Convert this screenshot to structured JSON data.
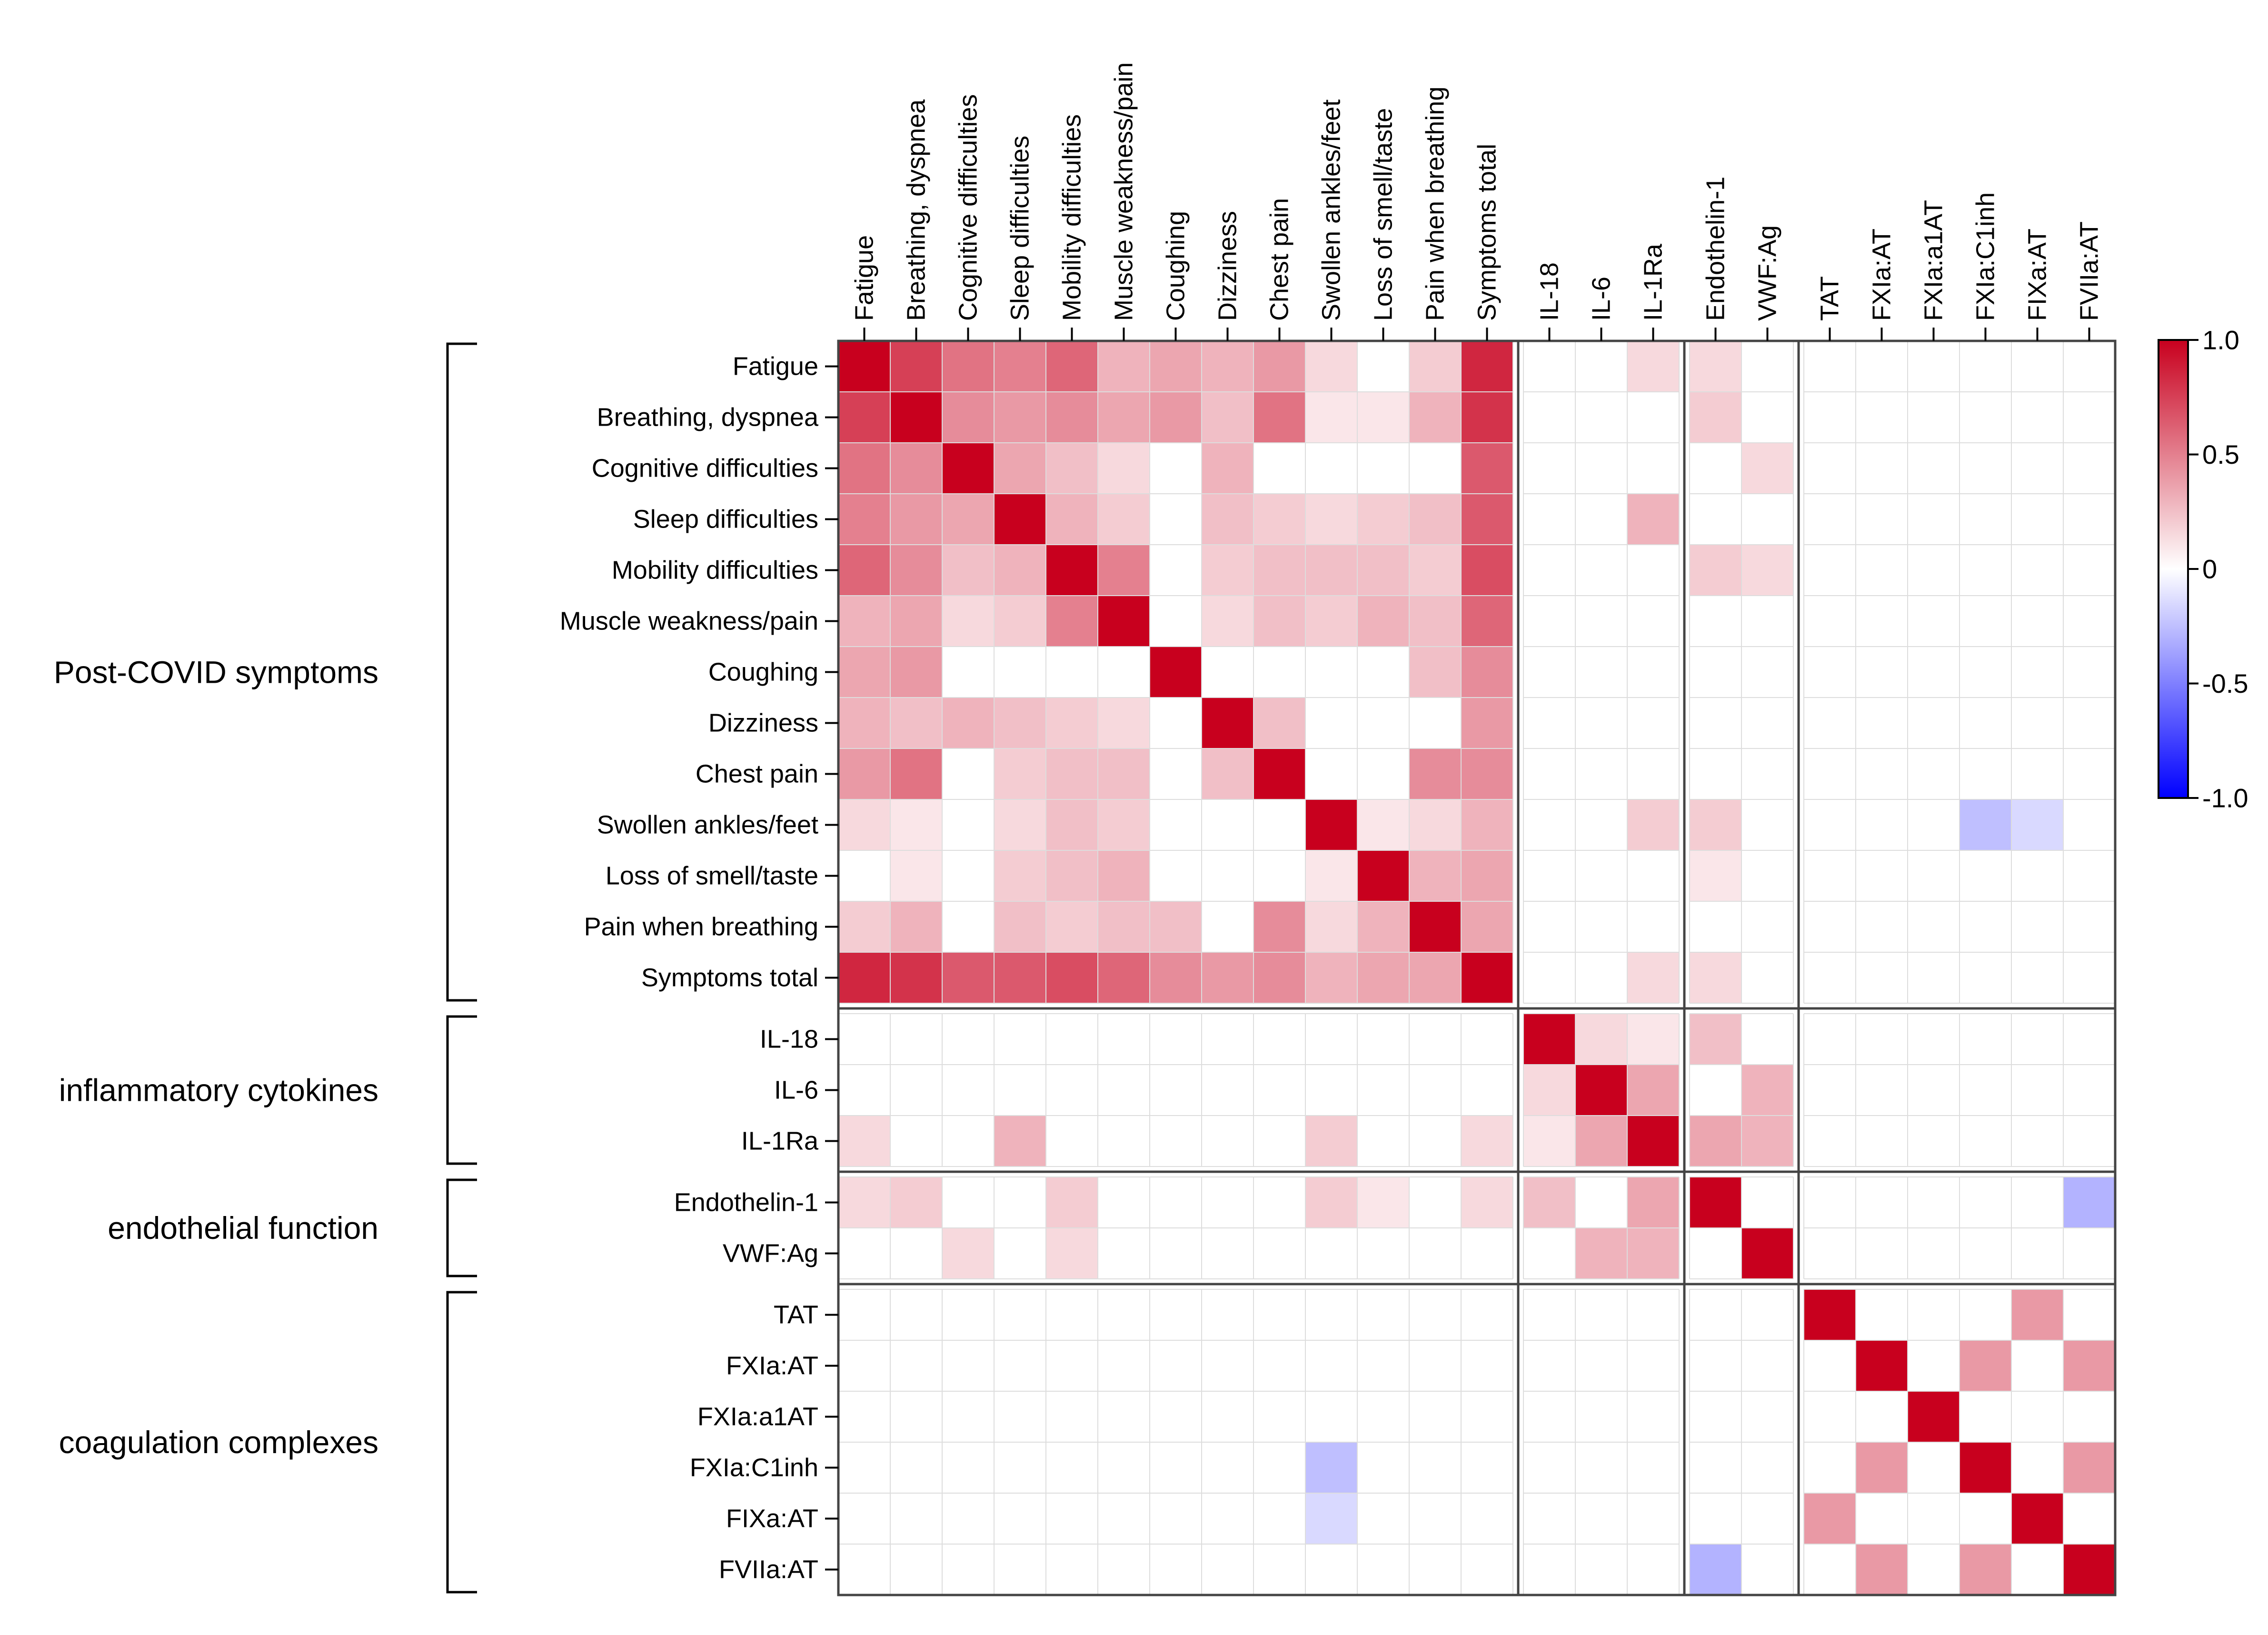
{
  "chart_data": {
    "type": "heatmap",
    "labels": [
      "Fatigue",
      "Breathing, dyspnea",
      "Cognitive difficulties",
      "Sleep difficulties",
      "Mobility difficulties",
      "Muscle weakness/pain",
      "Coughing",
      "Dizziness",
      "Chest pain",
      "Swollen ankles/feet",
      "Loss of smell/taste",
      "Pain when breathing",
      "Symptoms total",
      "IL-18",
      "IL-6",
      "IL-1Ra",
      "Endothelin-1",
      "VWF:Ag",
      "TAT",
      "FXIa:AT",
      "FXIa:a1AT",
      "FXIa:C1inh",
      "FIXa:AT",
      "FVIIa:AT"
    ],
    "groups": [
      {
        "name": "Post-COVID symptoms",
        "start": 0,
        "end": 12
      },
      {
        "name": "inflammatory cytokines",
        "start": 13,
        "end": 15
      },
      {
        "name": "endothelial function",
        "start": 16,
        "end": 17
      },
      {
        "name": "coagulation complexes",
        "start": 18,
        "end": 23
      }
    ],
    "values": [
      [
        1,
        0.75,
        0.55,
        0.5,
        0.6,
        0.3,
        0.35,
        0.3,
        0.4,
        0.15,
        0,
        0.2,
        0.85,
        0,
        0,
        0.15,
        0.15,
        0,
        0,
        0,
        0,
        0,
        0,
        0
      ],
      [
        0.75,
        1,
        0.45,
        0.4,
        0.45,
        0.35,
        0.4,
        0.25,
        0.55,
        0.1,
        0.1,
        0.3,
        0.8,
        0,
        0,
        0,
        0.2,
        0,
        0,
        0,
        0,
        0,
        0,
        0
      ],
      [
        0.55,
        0.45,
        1,
        0.35,
        0.25,
        0.15,
        0,
        0.3,
        0,
        0,
        0,
        0,
        0.65,
        0,
        0,
        0,
        0,
        0.15,
        0,
        0,
        0,
        0,
        0,
        0
      ],
      [
        0.5,
        0.4,
        0.35,
        1,
        0.3,
        0.2,
        0,
        0.25,
        0.2,
        0.15,
        0.2,
        0.25,
        0.65,
        0,
        0,
        0.3,
        0,
        0,
        0,
        0,
        0,
        0,
        0,
        0
      ],
      [
        0.6,
        0.45,
        0.25,
        0.3,
        1,
        0.5,
        0,
        0.2,
        0.25,
        0.25,
        0.25,
        0.2,
        0.7,
        0,
        0,
        0,
        0.2,
        0.15,
        0,
        0,
        0,
        0,
        0,
        0
      ],
      [
        0.3,
        0.35,
        0.15,
        0.2,
        0.5,
        1,
        0,
        0.15,
        0.25,
        0.2,
        0.3,
        0.25,
        0.6,
        0,
        0,
        0,
        0,
        0,
        0,
        0,
        0,
        0,
        0,
        0
      ],
      [
        0.35,
        0.4,
        0,
        0,
        0,
        0,
        1,
        0,
        0,
        0,
        0,
        0.25,
        0.45,
        0,
        0,
        0,
        0,
        0,
        0,
        0,
        0,
        0,
        0,
        0
      ],
      [
        0.3,
        0.25,
        0.3,
        0.25,
        0.2,
        0.15,
        0,
        1,
        0.25,
        0,
        0,
        0,
        0.4,
        0,
        0,
        0,
        0,
        0,
        0,
        0,
        0,
        0,
        0,
        0
      ],
      [
        0.4,
        0.55,
        0,
        0.2,
        0.25,
        0.25,
        0,
        0.25,
        1,
        0,
        0,
        0.45,
        0.45,
        0,
        0,
        0,
        0,
        0,
        0,
        0,
        0,
        0,
        0,
        0
      ],
      [
        0.15,
        0.1,
        0,
        0.15,
        0.25,
        0.2,
        0,
        0,
        0,
        1,
        0.1,
        0.15,
        0.3,
        0,
        0,
        0.2,
        0.2,
        0,
        0,
        0,
        0,
        -0.25,
        -0.15,
        0
      ],
      [
        0,
        0.1,
        0,
        0.2,
        0.25,
        0.3,
        0,
        0,
        0,
        0.1,
        1,
        0.3,
        0.35,
        0,
        0,
        0,
        0.1,
        0,
        0,
        0,
        0,
        0,
        0,
        0
      ],
      [
        0.2,
        0.3,
        0,
        0.25,
        0.2,
        0.25,
        0.25,
        0,
        0.45,
        0.15,
        0.3,
        1,
        0.35,
        0,
        0,
        0,
        0,
        0,
        0,
        0,
        0,
        0,
        0,
        0
      ],
      [
        0.85,
        0.8,
        0.65,
        0.65,
        0.7,
        0.6,
        0.45,
        0.4,
        0.45,
        0.3,
        0.35,
        0.35,
        1,
        0,
        0,
        0.15,
        0.15,
        0,
        0,
        0,
        0,
        0,
        0,
        0
      ],
      [
        0,
        0,
        0,
        0,
        0,
        0,
        0,
        0,
        0,
        0,
        0,
        0,
        0,
        1,
        0.15,
        0.1,
        0.25,
        0,
        0,
        0,
        0,
        0,
        0,
        0
      ],
      [
        0,
        0,
        0,
        0,
        0,
        0,
        0,
        0,
        0,
        0,
        0,
        0,
        0,
        0.15,
        1,
        0.35,
        0,
        0.3,
        0,
        0,
        0,
        0,
        0,
        0
      ],
      [
        0.15,
        0,
        0,
        0.3,
        0,
        0,
        0,
        0,
        0,
        0.2,
        0,
        0,
        0.15,
        0.1,
        0.35,
        1,
        0.35,
        0.3,
        0,
        0,
        0,
        0,
        0,
        0
      ],
      [
        0.15,
        0.2,
        0,
        0,
        0.2,
        0,
        0,
        0,
        0,
        0.2,
        0.1,
        0,
        0.15,
        0.25,
        0,
        0.35,
        1,
        0,
        0,
        0,
        0,
        0,
        0,
        -0.3
      ],
      [
        0,
        0,
        0.15,
        0,
        0.15,
        0,
        0,
        0,
        0,
        0,
        0,
        0,
        0,
        0,
        0.3,
        0.3,
        0,
        1,
        0,
        0,
        0,
        0,
        0,
        0
      ],
      [
        0,
        0,
        0,
        0,
        0,
        0,
        0,
        0,
        0,
        0,
        0,
        0,
        0,
        0,
        0,
        0,
        0,
        0,
        1,
        0,
        0,
        0,
        0.4,
        0
      ],
      [
        0,
        0,
        0,
        0,
        0,
        0,
        0,
        0,
        0,
        0,
        0,
        0,
        0,
        0,
        0,
        0,
        0,
        0,
        0,
        1,
        0,
        0.4,
        0,
        0.4
      ],
      [
        0,
        0,
        0,
        0,
        0,
        0,
        0,
        0,
        0,
        0,
        0,
        0,
        0,
        0,
        0,
        0,
        0,
        0,
        0,
        0,
        1,
        0,
        0,
        0
      ],
      [
        0,
        0,
        0,
        0,
        0,
        0,
        0,
        0,
        0,
        -0.25,
        0,
        0,
        0,
        0,
        0,
        0,
        0,
        0,
        0,
        0.4,
        0,
        1,
        0,
        0.4
      ],
      [
        0,
        0,
        0,
        0,
        0,
        0,
        0,
        0,
        0,
        -0.15,
        0,
        0,
        0,
        0,
        0,
        0,
        0,
        0,
        0.4,
        0,
        0,
        0,
        1,
        0
      ],
      [
        0,
        0,
        0,
        0,
        0,
        0,
        0,
        0,
        0,
        0,
        0,
        0,
        0,
        0,
        0,
        0,
        -0.3,
        0,
        0,
        0.4,
        0,
        0.4,
        0,
        1
      ]
    ],
    "colorbar": {
      "range": [
        -1.0,
        1.0
      ],
      "ticks": [
        "1.0",
        "0.5",
        "0",
        "-0.5",
        "-1.0"
      ],
      "tick_values": [
        1.0,
        0.5,
        0,
        -0.5,
        -1.0
      ],
      "colors": {
        "negative": "#0000ff",
        "zero": "#ffffff",
        "positive": "#c8001e"
      }
    },
    "grid_color": "#dddddd",
    "separator_color": "#444444"
  }
}
